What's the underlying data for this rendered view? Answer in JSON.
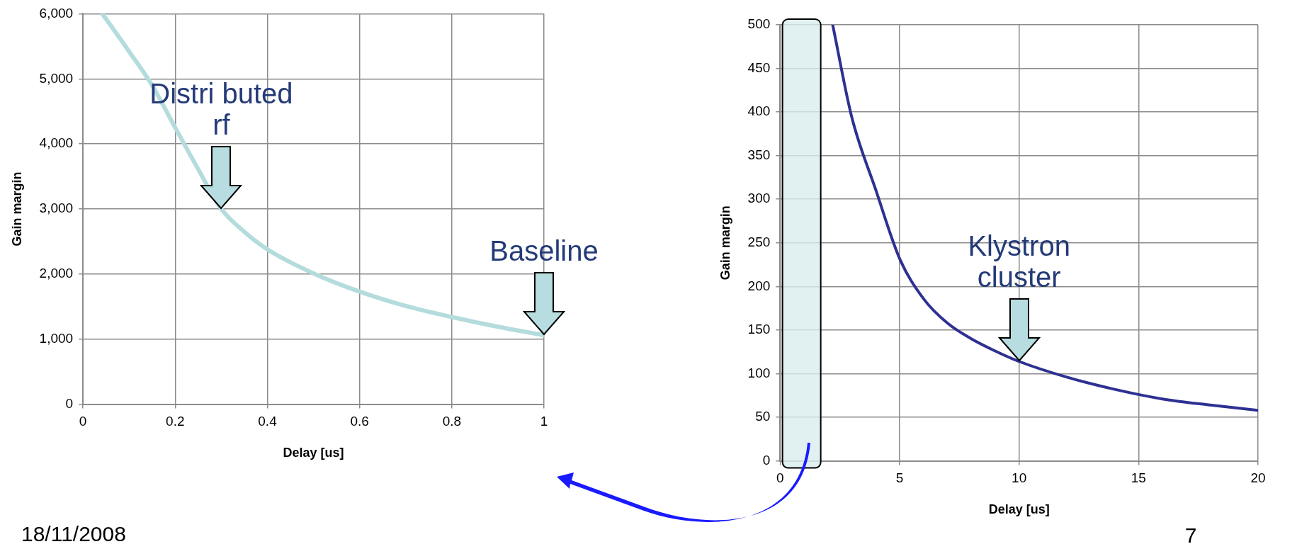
{
  "chart_data": [
    {
      "type": "line",
      "xlabel": "Delay [us]",
      "ylabel": "Gain margin",
      "series": [
        {
          "color": "#b4dcdc",
          "x": [
            0.042,
            0.1,
            0.15,
            0.2,
            0.25,
            0.3,
            0.35,
            0.4,
            0.5,
            0.6,
            0.7,
            0.8,
            0.9,
            1.0
          ],
          "values": [
            6000,
            5420,
            4900,
            4250,
            3610,
            3000,
            2650,
            2380,
            2010,
            1730,
            1510,
            1340,
            1190,
            1060
          ]
        }
      ],
      "xlim": [
        0,
        1
      ],
      "xticks": [
        0,
        0.2,
        0.4,
        0.6,
        0.8,
        1
      ],
      "ylim": [
        0,
        6000
      ],
      "yticks": [
        0,
        {
          "value": 1000,
          "label": "1,000"
        },
        {
          "value": 2000,
          "label": "2,000"
        },
        {
          "value": 3000,
          "label": "3,000"
        },
        {
          "value": 4000,
          "label": "4,000"
        },
        {
          "value": 5000,
          "label": "5,000"
        },
        {
          "value": 6000,
          "label": "6,000"
        }
      ],
      "grid": true,
      "legend": false,
      "marker": "none",
      "line_style": "solid",
      "annotations": [
        {
          "text": "Distri buted rf",
          "x": 0.3,
          "y": 3000
        },
        {
          "text": "Baseline",
          "x": 1,
          "y": 1060
        },
        "18/11/2008"
      ]
    },
    {
      "type": "line",
      "xlabel": "Delay [us]",
      "ylabel": "Gain margin",
      "series": [
        {
          "color": "#2e3192",
          "x": [
            2.2,
            3,
            4,
            5,
            6,
            7,
            8,
            9,
            10,
            12,
            14,
            16,
            18,
            20
          ],
          "values": [
            500,
            394,
            311,
            232,
            186,
            158,
            140,
            126,
            114,
            96,
            82,
            71,
            64,
            58
          ]
        }
      ],
      "xlim": [
        0,
        20
      ],
      "xticks": [
        0,
        5,
        10,
        15,
        20
      ],
      "ylim": [
        0,
        500
      ],
      "yticks": [
        0,
        50,
        100,
        150,
        200,
        250,
        300,
        350,
        400,
        450,
        500
      ],
      "grid": true,
      "legend": false,
      "marker": "none",
      "line_style": "solid",
      "bands": [
        {
          "axis": "x",
          "from": 0.1,
          "to": 1.7,
          "color": "#d9eeee"
        }
      ],
      "annotations": [
        {
          "text": "Klystron cluster",
          "x": 10,
          "y": 114
        },
        "7"
      ]
    }
  ]
}
